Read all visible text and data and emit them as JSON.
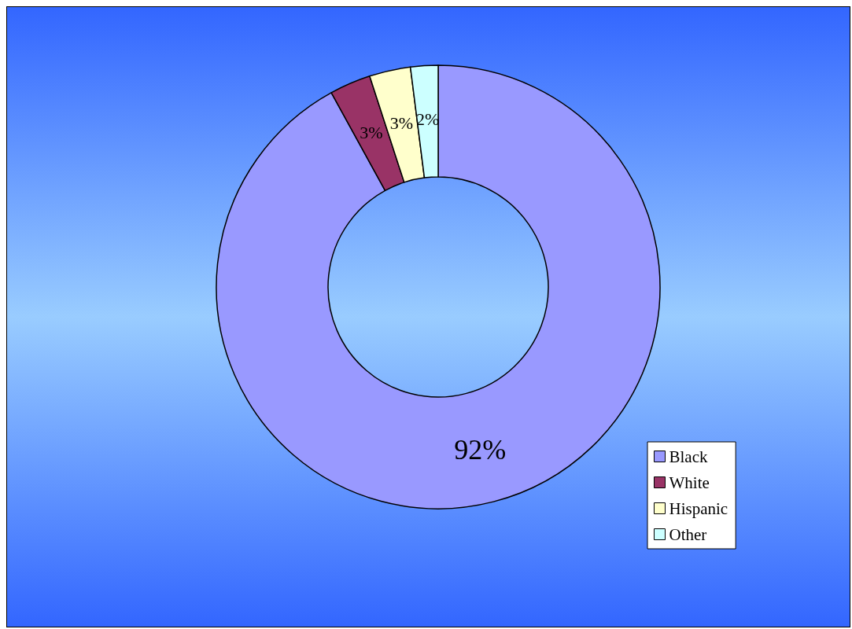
{
  "chart_data": {
    "type": "donut",
    "categories": [
      "Black",
      "White",
      "Hispanic",
      "Other"
    ],
    "values": [
      92,
      3,
      3,
      2
    ],
    "colors": [
      "#9999ff",
      "#993366",
      "#ffffcc",
      "#ccffff"
    ],
    "value_labels": [
      "92%",
      "3%",
      "3%",
      "2%"
    ],
    "legend": "bottom right"
  }
}
